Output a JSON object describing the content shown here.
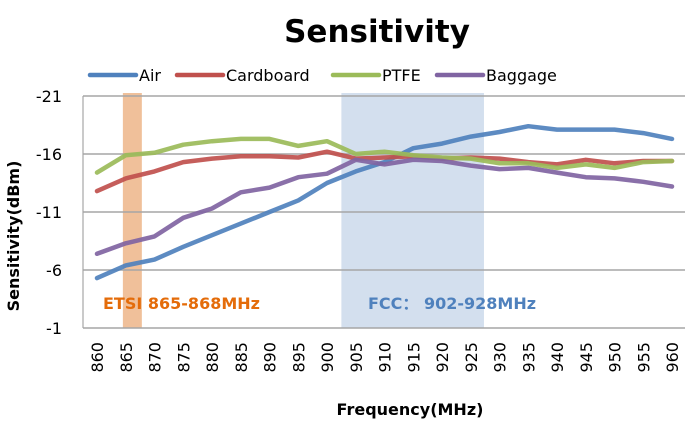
{
  "chart_data": {
    "type": "line",
    "title": "Sensitivity",
    "xlabel": "Frequency(MHz)",
    "ylabel": "Sensitivity(dBm)",
    "x": [
      860,
      865,
      870,
      875,
      880,
      885,
      890,
      895,
      900,
      905,
      910,
      915,
      920,
      925,
      930,
      935,
      940,
      945,
      950,
      955,
      960
    ],
    "x_tick_labels": [
      "860",
      "865",
      "870",
      "875",
      "880",
      "885",
      "890",
      "895",
      "900",
      "905",
      "910",
      "915",
      "920",
      "925",
      "930",
      "935",
      "940",
      "945",
      "950",
      "955",
      "960"
    ],
    "y_ticks": [
      -21,
      -16,
      -11,
      -6,
      -1
    ],
    "y_tick_labels": [
      "-21",
      "-16",
      "-11",
      "-6",
      "-1"
    ],
    "ylim": [
      -1,
      -21
    ],
    "y_inverted": true,
    "grid": "horizontal",
    "legend_position": "top",
    "series": [
      {
        "name": "Air",
        "color": "#4F81BD",
        "values": [
          -5.3,
          -6.4,
          -6.9,
          -8.0,
          -9.0,
          -10.0,
          -11.0,
          -12.0,
          -13.5,
          -14.5,
          -15.3,
          -16.5,
          -16.9,
          -17.5,
          -17.9,
          -18.4,
          -18.1,
          -18.1,
          -18.1,
          -17.8,
          -17.3
        ]
      },
      {
        "name": "Cardboard",
        "color": "#C0504D",
        "values": [
          -12.8,
          -13.9,
          -14.5,
          -15.3,
          -15.6,
          -15.8,
          -15.8,
          -15.7,
          -16.2,
          -15.6,
          -15.7,
          -15.8,
          -15.6,
          -15.7,
          -15.6,
          -15.3,
          -15.1,
          -15.5,
          -15.2,
          -15.4,
          -15.4
        ]
      },
      {
        "name": "PTFE",
        "color": "#9BBB59",
        "values": [
          -14.4,
          -15.9,
          -16.1,
          -16.8,
          -17.1,
          -17.3,
          -17.3,
          -16.7,
          -17.1,
          -16.0,
          -16.2,
          -15.9,
          -15.7,
          -15.6,
          -15.2,
          -15.2,
          -14.8,
          -15.1,
          -14.8,
          -15.3,
          -15.4
        ]
      },
      {
        "name": "Baggage",
        "color": "#8064A2",
        "values": [
          -7.4,
          -8.3,
          -8.9,
          -10.5,
          -11.3,
          -12.7,
          -13.1,
          -14.0,
          -14.3,
          -15.5,
          -15.1,
          -15.5,
          -15.4,
          -15.0,
          -14.7,
          -14.8,
          -14.4,
          -14.0,
          -13.9,
          -13.6,
          -13.2
        ]
      }
    ],
    "bands": [
      {
        "name": "ETSI",
        "label": "ETSI 865-868MHz",
        "from": 864.5,
        "to": 867.8,
        "color": "#F0C09A",
        "label_color": "#E46C0A"
      },
      {
        "name": "FCC",
        "label": "FCC： 902-928MHz",
        "from": 902.5,
        "to": 927.3,
        "color": "#D3DFEE",
        "label_color": "#4F81BD"
      }
    ]
  }
}
